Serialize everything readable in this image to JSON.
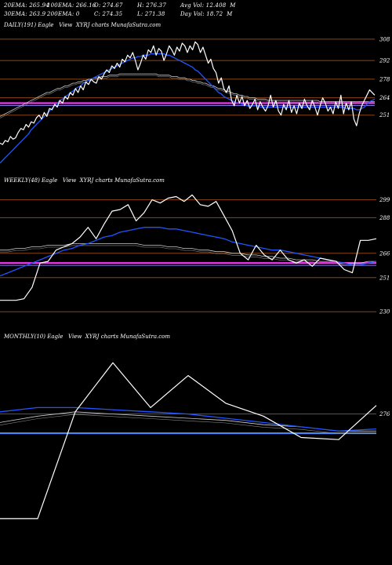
{
  "header": {
    "line1": [
      {
        "label": "20EMA:",
        "value": "265.94"
      },
      {
        "label": "100EMA:",
        "value": "266.16"
      },
      {
        "label": "O:",
        "value": "274.67"
      },
      {
        "label": "H:",
        "value": "276.37"
      },
      {
        "label": "Avg Vol:",
        "value": "12.408  M"
      }
    ],
    "line2": [
      {
        "label": "30EMA:",
        "value": "263.9"
      },
      {
        "label": "200EMA:",
        "value": "0"
      },
      {
        "label": "C:",
        "value": "274.35"
      },
      {
        "label": "L:",
        "value": "271.38"
      },
      {
        "label": "Day Vol:",
        "value": "18.72  M"
      }
    ]
  },
  "colors": {
    "background": "#000000",
    "price": "#ffffff",
    "ema_fast": "#2255ff",
    "ema_slow": "#cccccc",
    "support": "#ff33ff",
    "weekly_support": "#4488ff",
    "gridline": "#8b4513"
  },
  "chart_data": [
    {
      "type": "line",
      "title": "DAILY(191) Eagle   View  XYRJ charts MunafaSutra.com",
      "yticks": [
        "308",
        "292",
        "278",
        "264",
        "251"
      ],
      "ylim": [
        212,
        315
      ],
      "price": [
        230,
        229,
        232,
        231,
        235,
        233,
        234,
        238,
        241,
        240,
        244,
        242,
        246,
        245,
        249,
        251,
        248,
        253,
        250,
        256,
        255,
        259,
        257,
        262,
        260,
        265,
        263,
        268,
        266,
        271,
        268,
        273,
        270,
        276,
        274,
        278,
        276,
        275,
        280,
        278,
        282,
        285,
        283,
        288,
        286,
        290,
        287,
        293,
        291,
        296,
        294,
        298,
        292,
        285,
        290,
        296,
        293,
        300,
        298,
        303,
        296,
        301,
        299,
        292,
        297,
        303,
        300,
        296,
        302,
        299,
        305,
        303,
        298,
        303,
        300,
        306,
        304,
        298,
        302,
        296,
        290,
        293,
        286,
        283,
        275,
        279,
        271,
        268,
        273,
        262,
        258,
        266,
        260,
        265,
        258,
        262,
        256,
        259,
        263,
        255,
        261,
        257,
        254,
        258,
        266,
        257,
        262,
        254,
        251,
        259,
        255,
        262,
        253,
        258,
        252,
        260,
        256,
        263,
        258,
        255,
        262,
        257,
        251,
        258,
        264,
        260,
        254,
        257,
        252,
        261,
        256,
        266,
        252,
        260,
        255,
        261,
        248,
        243,
        252,
        258,
        262,
        266,
        270,
        268,
        266
      ],
      "ema_fast": [
        215,
        217,
        219,
        221,
        223,
        225,
        227,
        229,
        231,
        233,
        235,
        237,
        240,
        242,
        244,
        246,
        248,
        250,
        252,
        254,
        256,
        258,
        260,
        262,
        263,
        265,
        266,
        268,
        269,
        271,
        272,
        273,
        275,
        276,
        277,
        278,
        279,
        280,
        281,
        282,
        283,
        284,
        285,
        286,
        287,
        288,
        289,
        290,
        291,
        292,
        293,
        294,
        294,
        295,
        295,
        296,
        296,
        296,
        297,
        297,
        297,
        297,
        297,
        297,
        296,
        296,
        295,
        294,
        293,
        292,
        291,
        290,
        289,
        288,
        287,
        285,
        284,
        282,
        280,
        278,
        276,
        274,
        272,
        270,
        268,
        267,
        265,
        264,
        263,
        262,
        261,
        260,
        260,
        259,
        259,
        258,
        258,
        258,
        258,
        258,
        257,
        257,
        257,
        257,
        257,
        257,
        257,
        257,
        257,
        257,
        257,
        257,
        257,
        257,
        257,
        257,
        257,
        257,
        257,
        257,
        257,
        257,
        257,
        257,
        257,
        257,
        257,
        257,
        257,
        257,
        257,
        257,
        257,
        256,
        256,
        256,
        256,
        255,
        255,
        256,
        257,
        259,
        261,
        262,
        263
      ],
      "ema_slow": [
        250,
        251,
        252,
        253,
        254,
        255,
        256,
        257,
        258,
        259,
        260,
        261,
        262,
        263,
        264,
        265,
        266,
        267,
        268,
        268,
        269,
        270,
        271,
        271,
        272,
        273,
        273,
        274,
        275,
        275,
        276,
        276,
        277,
        277,
        278,
        278,
        279,
        279,
        279,
        280,
        280,
        280,
        281,
        281,
        281,
        281,
        282,
        282,
        282,
        282,
        282,
        282,
        282,
        282,
        282,
        282,
        282,
        282,
        282,
        282,
        282,
        281,
        281,
        281,
        281,
        281,
        280,
        280,
        280,
        279,
        279,
        279,
        278,
        278,
        277,
        277,
        276,
        276,
        275,
        275,
        274,
        273,
        273,
        272,
        271,
        271,
        270,
        269,
        269,
        268,
        267,
        267,
        266,
        266,
        265,
        265,
        264,
        264,
        264,
        263,
        263,
        263,
        263,
        262,
        262,
        262,
        262,
        262,
        262,
        262,
        262,
        262,
        262,
        262,
        262,
        262,
        262,
        262,
        262,
        262,
        262,
        262,
        262,
        261,
        261,
        261,
        261,
        261,
        261,
        261,
        261,
        261,
        261,
        261,
        261,
        261,
        261,
        261,
        261,
        261,
        261,
        261,
        261,
        261,
        261
      ],
      "hlines": [
        {
          "y": 308,
          "kind": "grid"
        },
        {
          "y": 292,
          "kind": "grid"
        },
        {
          "y": 278,
          "kind": "grid"
        },
        {
          "y": 264,
          "kind": "grid"
        },
        {
          "y": 251,
          "kind": "grid"
        },
        {
          "y": 260,
          "kind": "support"
        }
      ]
    },
    {
      "type": "line",
      "title": "WEEKLY(48) Eagle   View  XYRJ charts MunafaSutra.com",
      "yticks": [
        "299",
        "288",
        "266",
        "251",
        "230"
      ],
      "ylim": [
        218,
        308
      ],
      "price": [
        237,
        237,
        237,
        238,
        245,
        260,
        261,
        268,
        270,
        272,
        276,
        282,
        275,
        284,
        292,
        293,
        296,
        286,
        291,
        299,
        297,
        300,
        301,
        298,
        302,
        296,
        295,
        298,
        289,
        280,
        266,
        262,
        271,
        265,
        262,
        268,
        262,
        260,
        262,
        258,
        263,
        262,
        261,
        256,
        254,
        274,
        274,
        275
      ],
      "ema_fast": [
        252,
        254,
        256,
        258,
        260,
        262,
        264,
        266,
        268,
        269,
        271,
        272,
        274,
        276,
        277,
        279,
        280,
        281,
        282,
        282,
        282,
        281,
        281,
        280,
        279,
        278,
        277,
        276,
        275,
        273,
        272,
        271,
        270,
        269,
        268,
        268,
        267,
        266,
        265,
        264,
        263,
        262,
        261,
        260,
        259,
        259,
        260,
        261
      ],
      "ema_slow": [
        268,
        268,
        269,
        269,
        270,
        270,
        271,
        271,
        271,
        272,
        272,
        272,
        272,
        272,
        272,
        272,
        272,
        272,
        271,
        271,
        271,
        270,
        270,
        269,
        269,
        268,
        268,
        267,
        267,
        266,
        266,
        265,
        265,
        264,
        264,
        263,
        263,
        262,
        262,
        262,
        261,
        261,
        261,
        260,
        260,
        260,
        261,
        261
      ],
      "hlines": [
        {
          "y": 299,
          "kind": "grid"
        },
        {
          "y": 288,
          "kind": "grid"
        },
        {
          "y": 266,
          "kind": "grid"
        },
        {
          "y": 251,
          "kind": "grid"
        },
        {
          "y": 230,
          "kind": "grid"
        },
        {
          "y": 260,
          "kind": "support"
        }
      ]
    },
    {
      "type": "line",
      "title": "MONTHLY(10) Eagle   View  XYRJ charts MunafaSutra.com",
      "yticks": [
        "276"
      ],
      "ylim": [
        220,
        310
      ],
      "price": [
        227,
        227,
        277,
        300,
        279,
        294,
        281,
        275,
        265,
        264,
        280
      ],
      "ema_fast": [
        277,
        279,
        279,
        278,
        277,
        276,
        274,
        272,
        270,
        268,
        269
      ],
      "ema_slow": [
        272,
        275,
        277,
        276,
        275,
        274,
        273,
        271,
        270,
        268,
        268
      ],
      "hlines": [
        {
          "y": 276,
          "kind": "grid"
        },
        {
          "y": 267,
          "kind": "weekly_support"
        }
      ]
    }
  ]
}
